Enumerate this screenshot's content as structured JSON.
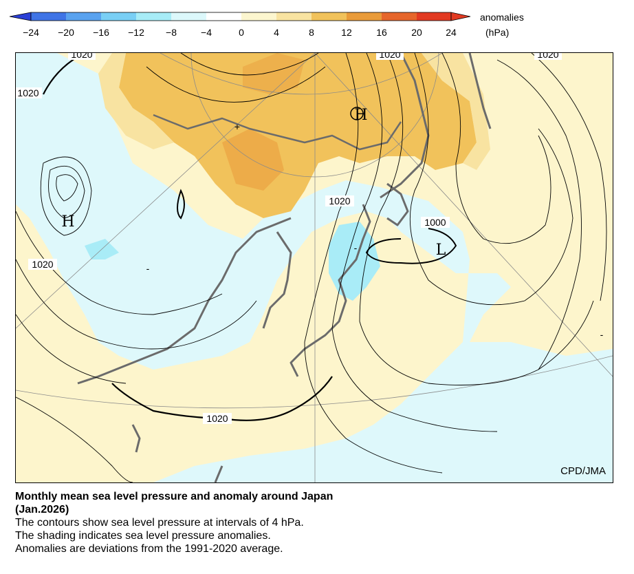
{
  "colorbar": {
    "ticks": [
      "−24",
      "−20",
      "−16",
      "−12",
      "−8",
      "−4",
      "0",
      "4",
      "8",
      "12",
      "16",
      "20",
      "24"
    ],
    "title_line1": "anomalies",
    "title_line2": "(hPa)",
    "colors": [
      "#2a3fd6",
      "#3f74e6",
      "#59a2ef",
      "#79cff5",
      "#a7ecf7",
      "#dcf8fb",
      "#fcf6cf",
      "#f8e3a1",
      "#f1c25b",
      "#e99b3a",
      "#e6662b",
      "#e23a22"
    ]
  },
  "map": {
    "isobar_labels": [
      "1020",
      "1020",
      "1020",
      "1020",
      "1020",
      "1020",
      "1020",
      "1000"
    ],
    "centers": [
      "H",
      "H",
      "L"
    ],
    "minus_marks": [
      "-",
      "-",
      "-"
    ],
    "credit": "CPD/JMA"
  },
  "caption": {
    "title": "Monthly mean sea level pressure and anomaly around Japan",
    "subtitle": "(Jan.2026)",
    "lines": [
      "The contours show sea level pressure at intervals of 4 hPa.",
      "The shading indicates sea level pressure anomalies.",
      "Anomalies are deviations from the 1991-2020 average."
    ]
  }
}
